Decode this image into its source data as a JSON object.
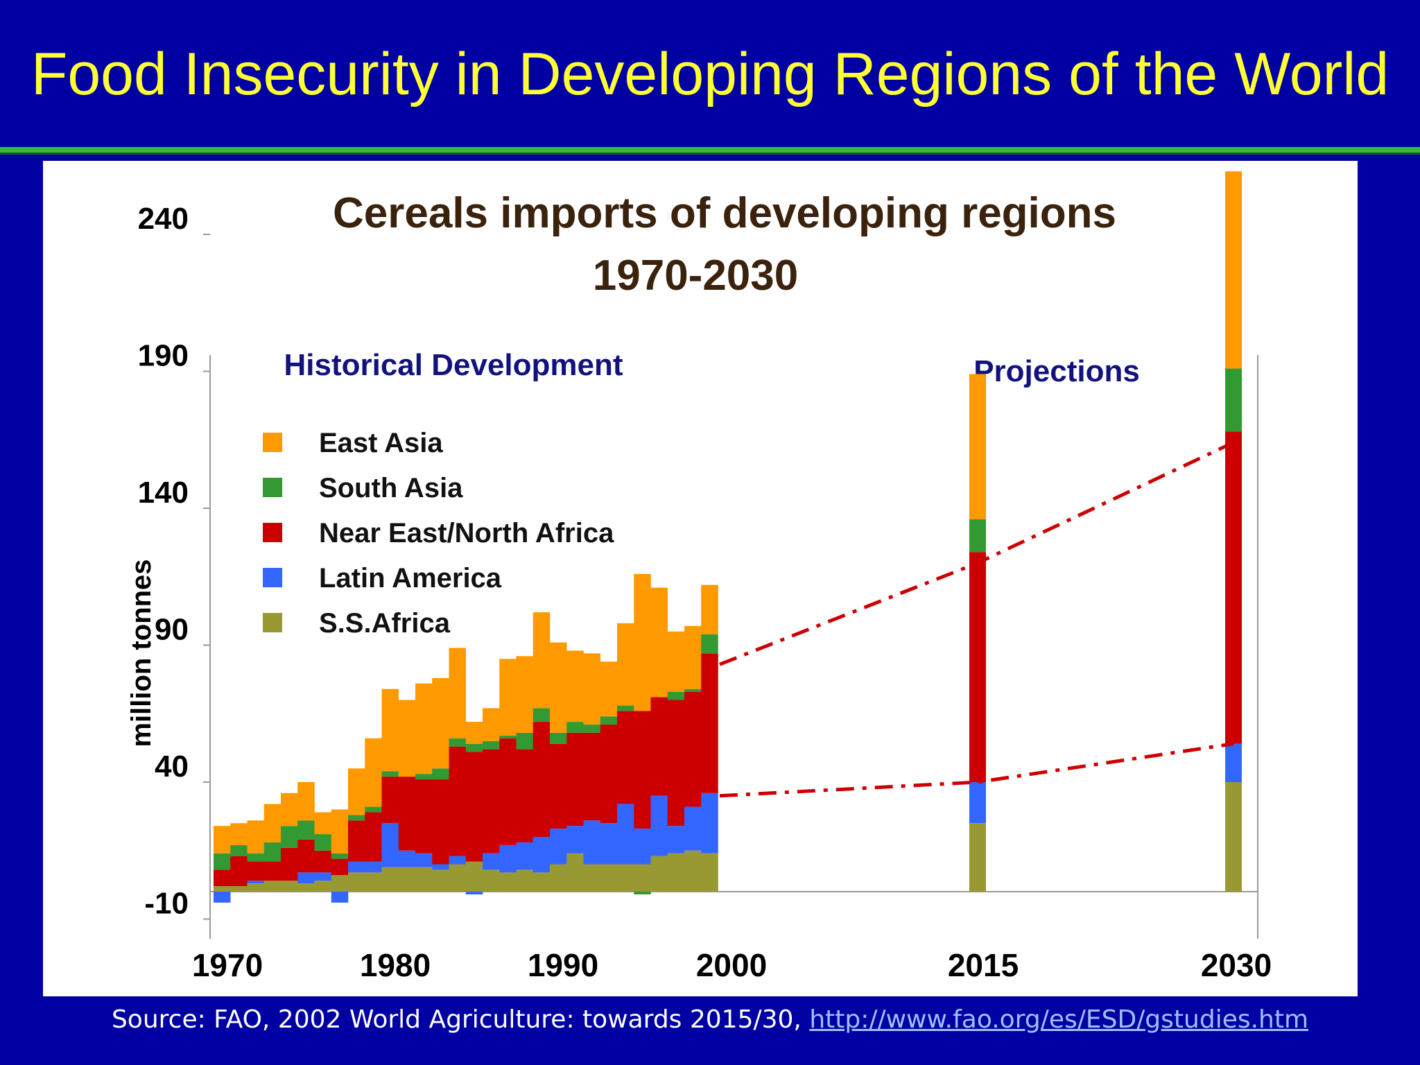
{
  "slide": {
    "title": "Food Insecurity in Developing Regions of the World",
    "source_prefix": "Source: FAO, 2002 World Agriculture: towards 2015/30, ",
    "source_link": "http://www.fao.org/es/ESD/gstudies.htm"
  },
  "colors": {
    "background": "#0000a3",
    "title": "#ffff33",
    "East Asia": "#ff9900",
    "South Asia": "#339933",
    "Near East/North Africa": "#cc0000",
    "Latin America": "#3366ff",
    "S.S.Africa": "#999933",
    "projection_line": "#cc0000"
  },
  "chart_data": {
    "type": "bar",
    "stacked": true,
    "title": "Cereals imports of developing regions",
    "subtitle": "1970-2030",
    "ylabel": "million tonnes",
    "xlabel": "",
    "ylim": [
      -10,
      265
    ],
    "yticks": [
      -10,
      40,
      90,
      140,
      190,
      240
    ],
    "xticks": [
      "1970",
      "1980",
      "1990",
      "2000",
      "2015",
      "2030"
    ],
    "section_labels": {
      "historical": "Historical Development",
      "projections": "Projections"
    },
    "legend": {
      "position": "upper-left",
      "entries": [
        "East Asia",
        "South Asia",
        "Near East/North Africa",
        "Latin America",
        "S.S.Africa"
      ]
    },
    "historical": {
      "years": [
        1970,
        1971,
        1972,
        1973,
        1974,
        1975,
        1976,
        1977,
        1978,
        1979,
        1980,
        1981,
        1982,
        1983,
        1984,
        1985,
        1986,
        1987,
        1988,
        1989,
        1990,
        1991,
        1992,
        1993,
        1994,
        1995,
        1996,
        1997,
        1998,
        1999
      ],
      "series": [
        {
          "name": "S.S.Africa",
          "values": [
            2,
            2,
            3,
            4,
            4,
            3,
            4,
            6,
            7,
            7,
            9,
            9,
            9,
            8,
            10,
            11,
            8,
            7,
            8,
            7,
            10,
            14,
            10,
            10,
            10,
            10,
            13,
            14,
            15,
            14
          ]
        },
        {
          "name": "Latin America",
          "values": [
            -4,
            0,
            1,
            0,
            0,
            4,
            3,
            -4,
            4,
            4,
            16,
            6,
            5,
            2,
            3,
            -1,
            6,
            10,
            10,
            13,
            13,
            10,
            16,
            15,
            22,
            13,
            22,
            10,
            16,
            22
          ]
        },
        {
          "name": "Near East/North Africa",
          "values": [
            6,
            11,
            7,
            7,
            12,
            12,
            8,
            6,
            15,
            18,
            17,
            27,
            27,
            31,
            40,
            40,
            38,
            39,
            34,
            42,
            31,
            34,
            32,
            36,
            34,
            43,
            36,
            46,
            42,
            51
          ]
        },
        {
          "name": "South Asia",
          "values": [
            6,
            4,
            3,
            7,
            8,
            7,
            6,
            2,
            2,
            2,
            2,
            0,
            2,
            4,
            3,
            3,
            3,
            1,
            6,
            5,
            4,
            4,
            3,
            3,
            2,
            -1,
            0,
            3,
            1,
            7
          ]
        },
        {
          "name": "East Asia",
          "values": [
            10,
            8,
            12,
            14,
            12,
            14,
            8,
            16,
            17,
            25,
            30,
            28,
            33,
            33,
            33,
            8,
            12,
            28,
            28,
            35,
            33,
            26,
            26,
            20,
            30,
            50,
            40,
            22,
            23,
            18
          ]
        }
      ]
    },
    "projections": {
      "years": [
        2015,
        2030
      ],
      "series": [
        {
          "name": "S.S.Africa",
          "values": [
            25,
            40
          ]
        },
        {
          "name": "Latin America",
          "values": [
            15,
            14
          ]
        },
        {
          "name": "Near East/North Africa",
          "values": [
            84,
            114
          ]
        },
        {
          "name": "South Asia",
          "values": [
            12,
            23
          ]
        },
        {
          "name": "East Asia",
          "values": [
            53,
            72
          ]
        }
      ]
    },
    "projection_lines": [
      {
        "name": "upper",
        "points": [
          [
            2000,
            83
          ],
          [
            2015,
            120
          ],
          [
            2030,
            164
          ]
        ]
      },
      {
        "name": "lower",
        "points": [
          [
            2000,
            35
          ],
          [
            2015,
            40
          ],
          [
            2030,
            54
          ]
        ]
      }
    ]
  }
}
